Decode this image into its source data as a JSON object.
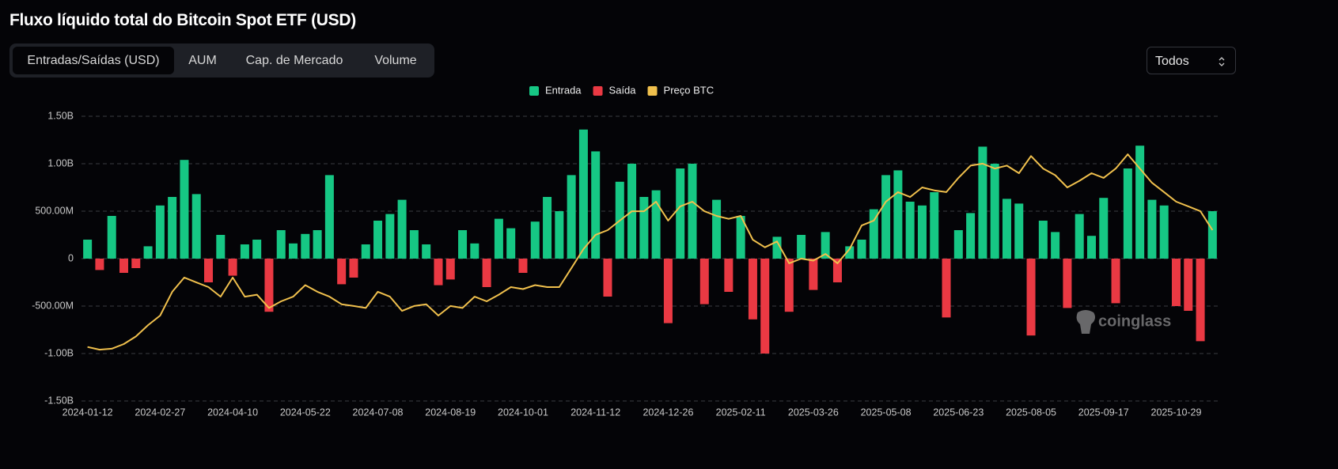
{
  "header": {
    "title": "Fluxo líquido total do Bitcoin Spot ETF (USD)"
  },
  "ui": {
    "tabs": [
      "Entradas/Saídas (USD)",
      "AUM",
      "Cap. de Mercado",
      "Volume"
    ],
    "select": "Todos",
    "watermark": "coinglass"
  },
  "chart_data": {
    "type": "bar",
    "categories": [
      "2024-01-12",
      null,
      null,
      null,
      null,
      null,
      "2024-02-27",
      null,
      null,
      null,
      null,
      null,
      "2024-04-10",
      null,
      null,
      null,
      null,
      null,
      "2024-05-22",
      null,
      null,
      null,
      null,
      null,
      "2024-07-08",
      null,
      null,
      null,
      null,
      null,
      "2024-08-19",
      null,
      null,
      null,
      null,
      null,
      "2024-10-01",
      null,
      null,
      null,
      null,
      null,
      "2024-11-12",
      null,
      null,
      null,
      null,
      null,
      "2024-12-26",
      null,
      null,
      null,
      null,
      null,
      "2025-02-11",
      null,
      null,
      null,
      null,
      null,
      "2025-03-26",
      null,
      null,
      null,
      null,
      null,
      "2025-05-08",
      null,
      null,
      null,
      null,
      null,
      "2025-06-23",
      null,
      null,
      null,
      null,
      null,
      "2025-08-05",
      null,
      null,
      null,
      null,
      null,
      "2025-09-17",
      null,
      null,
      null,
      null,
      null,
      "2025-10-29",
      null,
      null,
      null
    ],
    "series": [
      {
        "name": "Entrada",
        "color": "#16c784",
        "values": [
          200000000.0,
          null,
          450000000.0,
          null,
          null,
          130000000.0,
          560000000.0,
          650000000.0,
          1040000000.0,
          680000000.0,
          null,
          250000000.0,
          null,
          150000000.0,
          200000000.0,
          null,
          300000000.0,
          160000000.0,
          260000000.0,
          300000000.0,
          880000000.0,
          null,
          null,
          150000000.0,
          400000000.0,
          470000000.0,
          620000000.0,
          300000000.0,
          150000000.0,
          null,
          null,
          300000000.0,
          160000000.0,
          null,
          420000000.0,
          320000000.0,
          null,
          390000000.0,
          650000000.0,
          500000000.0,
          880000000.0,
          1360000000.0,
          1130000000.0,
          null,
          810000000.0,
          1000000000.0,
          650000000.0,
          720000000.0,
          null,
          950000000.0,
          1000000000.0,
          null,
          620000000.0,
          null,
          450000000.0,
          null,
          null,
          230000000.0,
          null,
          250000000.0,
          null,
          280000000.0,
          null,
          130000000.0,
          200000000.0,
          520000000.0,
          880000000.0,
          930000000.0,
          600000000.0,
          560000000.0,
          700000000.0,
          null,
          300000000.0,
          480000000.0,
          1180000000.0,
          1000000000.0,
          630000000.0,
          580000000.0,
          null,
          400000000.0,
          280000000.0,
          null,
          470000000.0,
          240000000.0,
          640000000.0,
          null,
          950000000.0,
          1190000000.0,
          620000000.0,
          560000000.0,
          null,
          null,
          null,
          500000000.0
        ]
      },
      {
        "name": "Saída",
        "color": "#ea3943",
        "values": [
          null,
          -120000000.0,
          null,
          -150000000.0,
          -100000000.0,
          null,
          null,
          null,
          null,
          null,
          -250000000.0,
          null,
          -180000000.0,
          null,
          null,
          -560000000.0,
          null,
          null,
          null,
          null,
          null,
          -270000000.0,
          -200000000.0,
          null,
          null,
          null,
          null,
          null,
          null,
          -280000000.0,
          -220000000.0,
          null,
          null,
          -300000000.0,
          null,
          null,
          -150000000.0,
          null,
          null,
          null,
          null,
          null,
          null,
          -400000000.0,
          null,
          null,
          null,
          null,
          -680000000.0,
          null,
          null,
          -480000000.0,
          null,
          -350000000.0,
          null,
          -640000000.0,
          -1000000000.0,
          null,
          -560000000.0,
          null,
          -330000000.0,
          null,
          -250000000.0,
          null,
          null,
          null,
          null,
          null,
          null,
          null,
          null,
          -620000000.0,
          null,
          null,
          null,
          null,
          null,
          null,
          -810000000.0,
          null,
          null,
          -520000000.0,
          null,
          null,
          null,
          -470000000.0,
          null,
          null,
          null,
          null,
          -500000000.0,
          -550000000.0,
          -870000000.0,
          null
        ]
      },
      {
        "name": "Preço BTC",
        "color": "#f0c04d",
        "axis": "y2",
        "values": [
          46000,
          44900,
          45300,
          47200,
          50300,
          54900,
          58800,
          68500,
          74300,
          72300,
          70400,
          66500,
          74300,
          66500,
          67300,
          61900,
          64600,
          66500,
          71200,
          68500,
          66500,
          63400,
          62700,
          61900,
          68500,
          66500,
          60700,
          62700,
          63400,
          58800,
          62700,
          61900,
          66500,
          64600,
          67300,
          70400,
          69600,
          71200,
          70400,
          70400,
          78100,
          85900,
          91700,
          93600,
          97500,
          101300,
          101300,
          105200,
          97500,
          103300,
          105200,
          101300,
          99400,
          98200,
          99400,
          89700,
          86600,
          89000,
          80100,
          82000,
          81200,
          83900,
          80100,
          85900,
          95500,
          97500,
          105200,
          109100,
          107100,
          111000,
          109800,
          109100,
          114900,
          119900,
          120700,
          118700,
          119900,
          116800,
          123800,
          118700,
          116000,
          111000,
          113700,
          116800,
          114900,
          118700,
          124500,
          118700,
          112900,
          109100,
          105200,
          103300,
          101300,
          93600
        ]
      }
    ],
    "ylim": [
      -1500000000.0,
      1500000000.0
    ],
    "yticks": [
      {
        "value": 1500000000.0,
        "label": "1.50B"
      },
      {
        "value": 1000000000.0,
        "label": "1.00B"
      },
      {
        "value": 500000000.0,
        "label": "500.00M"
      },
      0,
      {
        "value": -500000000.0,
        "label": "-500.00M"
      },
      {
        "value": -1000000000.0,
        "label": "-1.00B"
      },
      {
        "value": -1500000000.0,
        "label": "-1.50B"
      }
    ],
    "y2lim": [
      24000,
      140000
    ],
    "grid": true
  }
}
